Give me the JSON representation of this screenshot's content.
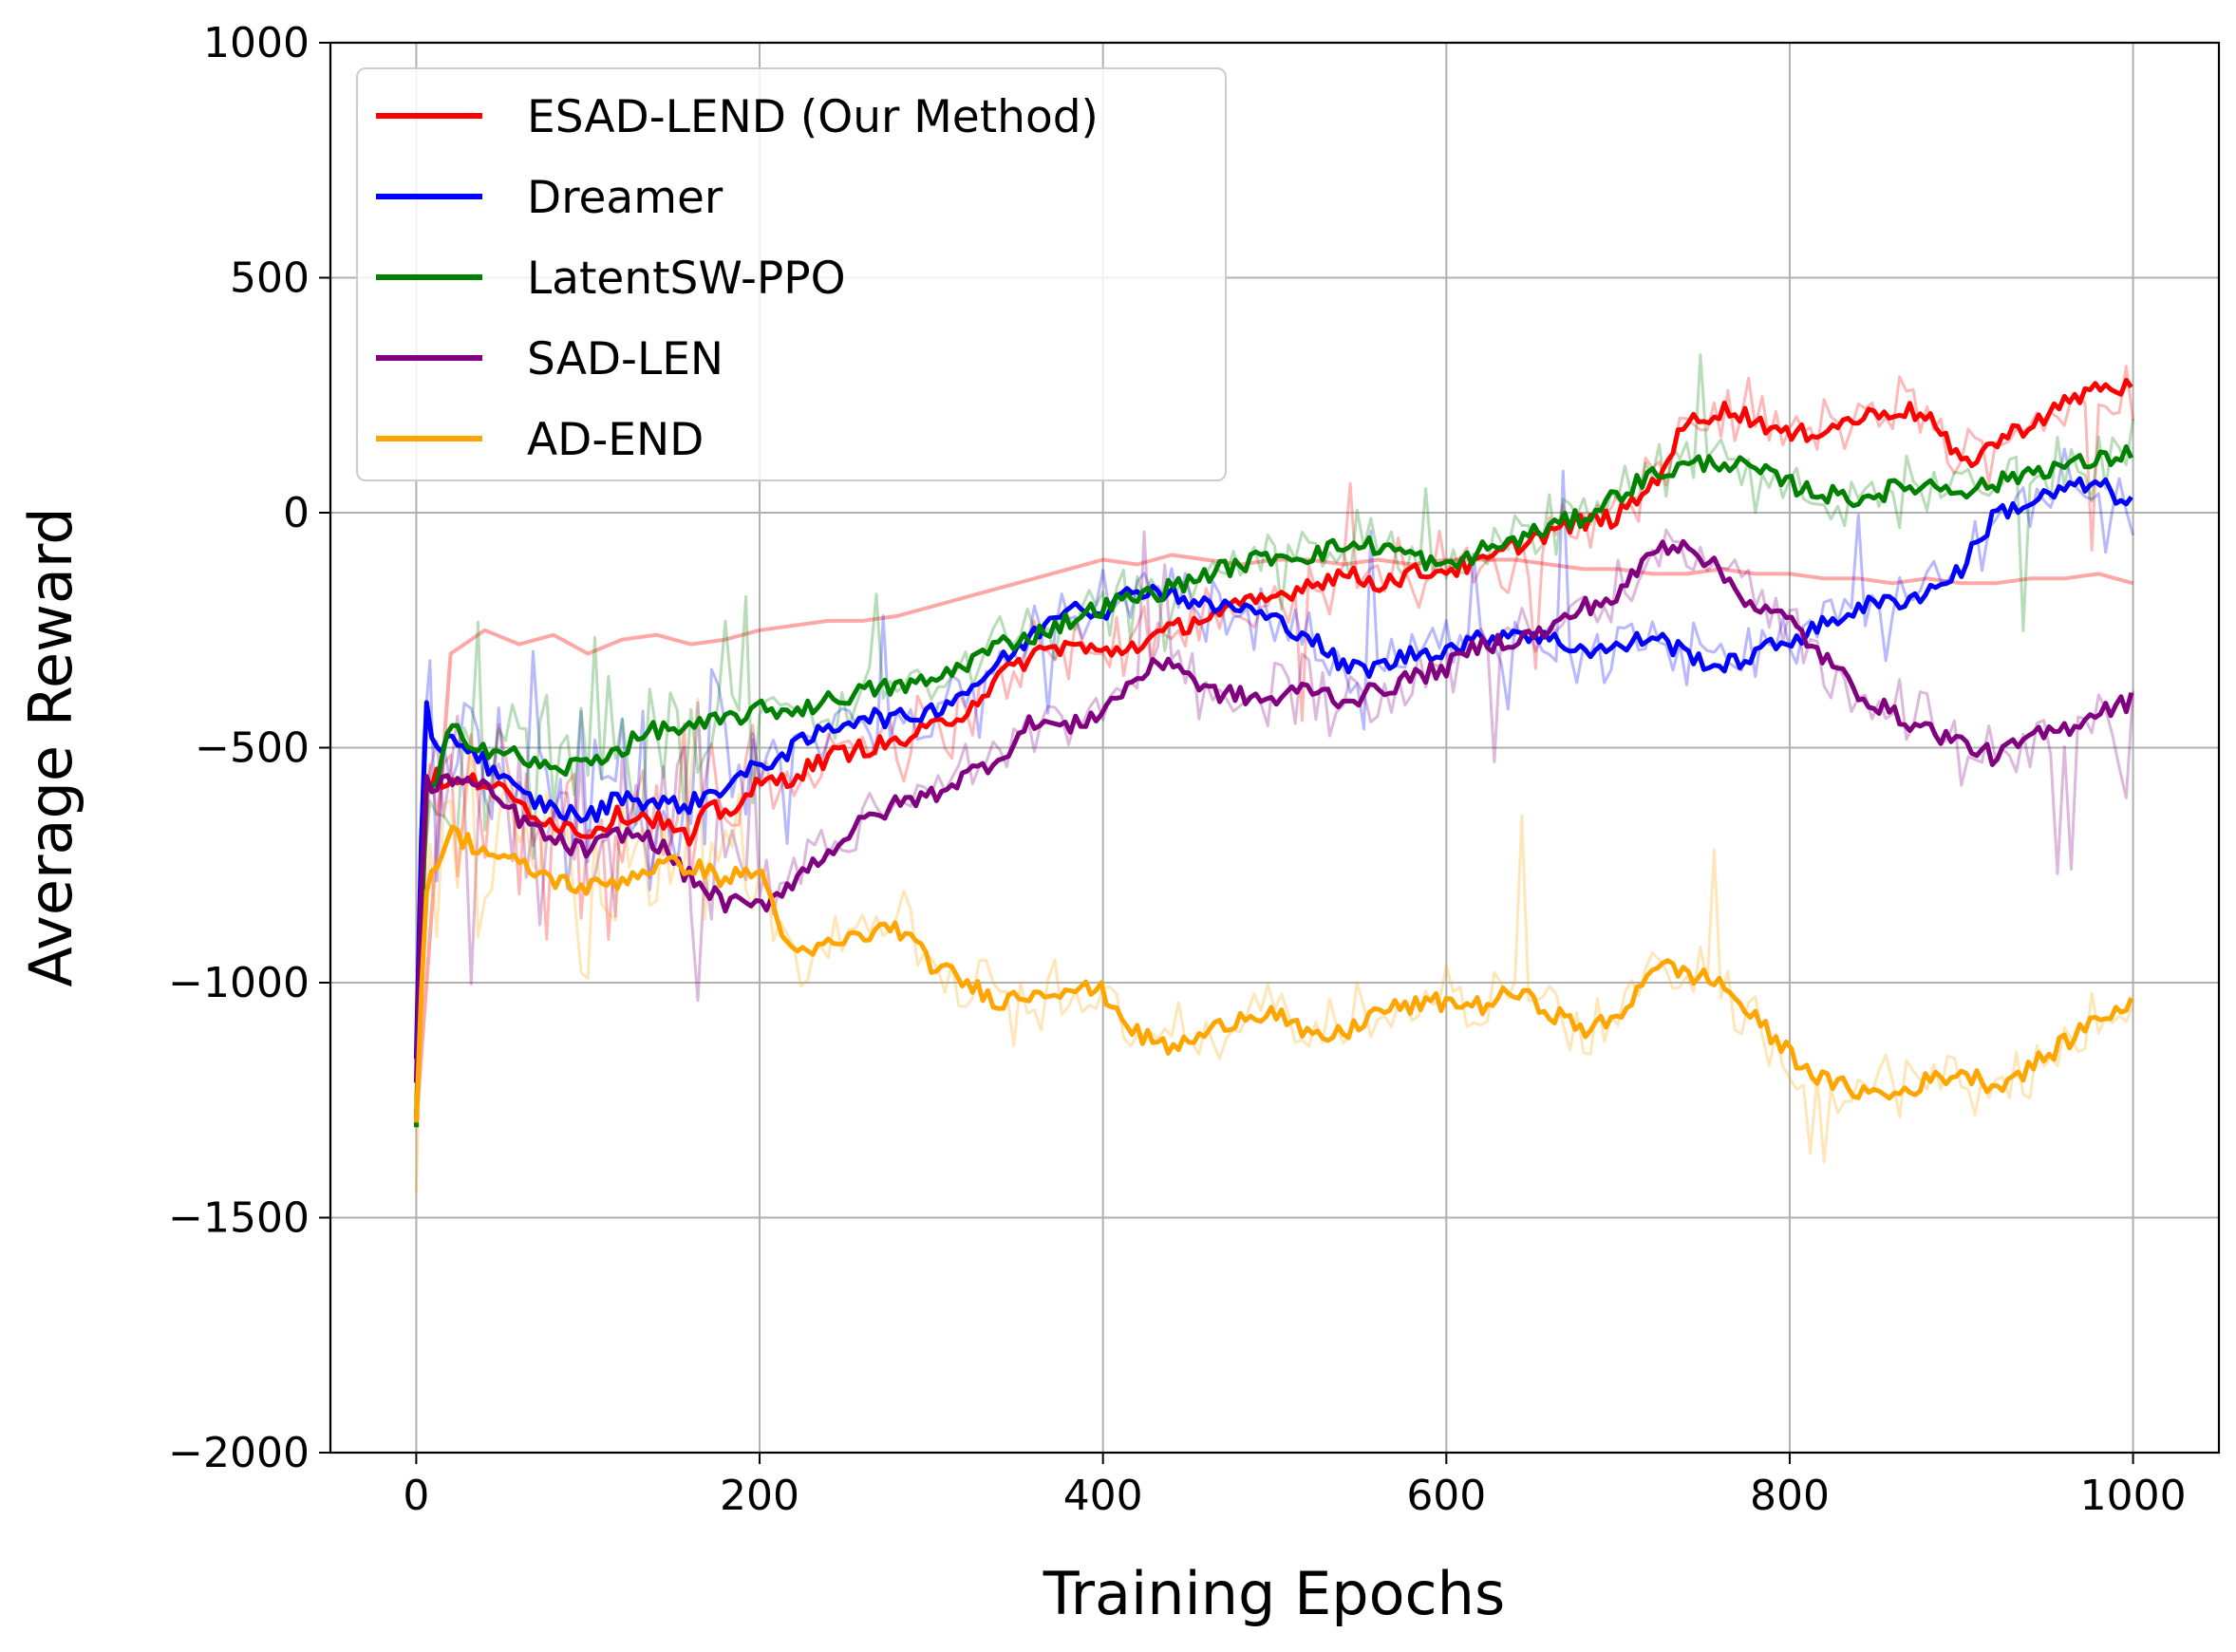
{
  "chart_data": {
    "type": "line",
    "title": "",
    "xlabel": "Training Epochs",
    "ylabel": "Average Reward",
    "xlim": [
      -50,
      1050
    ],
    "ylim": [
      -2000,
      1000
    ],
    "x_ticks": [
      0,
      200,
      400,
      600,
      800,
      1000
    ],
    "y_ticks": [
      -2000,
      -1500,
      -1000,
      -500,
      0,
      500,
      1000
    ],
    "x_tick_labels": [
      "0",
      "200",
      "400",
      "600",
      "800",
      "1000"
    ],
    "y_tick_labels": [
      "−2000",
      "−1500",
      "−1000",
      "−500",
      "0",
      "500",
      "1000"
    ],
    "grid": true,
    "legend_position": "top-left",
    "series": [
      {
        "name": "ESAD-LEND (Our Method)",
        "color": "#ff0000",
        "x": [
          0,
          5,
          10,
          20,
          40,
          60,
          80,
          100,
          120,
          140,
          160,
          170,
          180,
          200,
          220,
          240,
          260,
          280,
          300,
          320,
          340,
          360,
          380,
          400,
          420,
          440,
          460,
          480,
          500,
          520,
          540,
          560,
          580,
          600,
          620,
          640,
          660,
          680,
          700,
          720,
          740,
          760,
          780,
          800,
          820,
          840,
          860,
          880,
          900,
          920,
          940,
          960,
          980,
          1000
        ],
        "values": [
          -1300,
          -600,
          -560,
          -580,
          -570,
          -620,
          -660,
          -680,
          -640,
          -650,
          -700,
          -630,
          -640,
          -580,
          -560,
          -520,
          -500,
          -490,
          -460,
          -420,
          -350,
          -300,
          -280,
          -300,
          -280,
          -250,
          -220,
          -200,
          -180,
          -150,
          -130,
          -150,
          -130,
          -120,
          -110,
          -70,
          -40,
          -20,
          -10,
          60,
          190,
          220,
          200,
          160,
          180,
          200,
          220,
          210,
          100,
          150,
          190,
          230,
          270,
          265
        ]
      },
      {
        "name": "Dreamer",
        "color": "#0000ff",
        "x": [
          0,
          5,
          10,
          20,
          40,
          60,
          80,
          100,
          120,
          140,
          160,
          180,
          200,
          220,
          240,
          260,
          280,
          300,
          320,
          340,
          360,
          380,
          400,
          420,
          440,
          460,
          480,
          500,
          520,
          540,
          560,
          580,
          600,
          620,
          640,
          660,
          680,
          700,
          720,
          740,
          760,
          780,
          800,
          820,
          840,
          860,
          880,
          900,
          920,
          940,
          960,
          980,
          1000
        ],
        "values": [
          -1170,
          -400,
          -520,
          -470,
          -530,
          -600,
          -630,
          -650,
          -600,
          -620,
          -620,
          -580,
          -540,
          -500,
          -460,
          -430,
          -440,
          -420,
          -380,
          -320,
          -260,
          -190,
          -210,
          -160,
          -170,
          -200,
          -200,
          -230,
          -260,
          -330,
          -330,
          -300,
          -290,
          -270,
          -250,
          -270,
          -290,
          -290,
          -260,
          -300,
          -330,
          -300,
          -270,
          -240,
          -200,
          -190,
          -170,
          -120,
          0,
          20,
          50,
          60,
          15
        ]
      },
      {
        "name": "LatentSW-PPO",
        "color": "#008000",
        "x": [
          0,
          5,
          10,
          20,
          40,
          60,
          80,
          100,
          120,
          140,
          160,
          180,
          200,
          220,
          240,
          260,
          280,
          300,
          320,
          340,
          360,
          380,
          400,
          420,
          440,
          460,
          480,
          500,
          520,
          540,
          560,
          580,
          600,
          620,
          640,
          660,
          680,
          700,
          720,
          740,
          760,
          780,
          800,
          820,
          840,
          860,
          880,
          900,
          920,
          940,
          960,
          980,
          1000
        ],
        "values": [
          -1300,
          -580,
          -600,
          -460,
          -500,
          -520,
          -550,
          -530,
          -500,
          -460,
          -460,
          -440,
          -420,
          -420,
          -400,
          -380,
          -370,
          -360,
          -320,
          -280,
          -260,
          -230,
          -200,
          -180,
          -160,
          -130,
          -110,
          -90,
          -90,
          -70,
          -70,
          -90,
          -120,
          -80,
          -60,
          -30,
          -10,
          40,
          80,
          100,
          110,
          90,
          60,
          40,
          30,
          50,
          60,
          50,
          60,
          90,
          100,
          110,
          130
        ]
      },
      {
        "name": "SAD-LEN",
        "color": "#800080",
        "x": [
          0,
          5,
          10,
          20,
          40,
          60,
          80,
          100,
          120,
          140,
          160,
          180,
          200,
          220,
          240,
          260,
          280,
          300,
          320,
          340,
          360,
          380,
          400,
          420,
          440,
          460,
          480,
          500,
          520,
          540,
          560,
          580,
          600,
          620,
          640,
          660,
          680,
          700,
          720,
          740,
          760,
          780,
          800,
          820,
          840,
          860,
          880,
          900,
          920,
          940,
          960,
          980,
          1000
        ],
        "values": [
          -1200,
          -550,
          -600,
          -560,
          -590,
          -650,
          -700,
          -720,
          -680,
          -700,
          -780,
          -830,
          -840,
          -780,
          -720,
          -660,
          -620,
          -600,
          -560,
          -520,
          -440,
          -460,
          -420,
          -350,
          -310,
          -380,
          -390,
          -400,
          -370,
          -400,
          -380,
          -350,
          -330,
          -280,
          -270,
          -250,
          -200,
          -180,
          -80,
          -60,
          -130,
          -200,
          -230,
          -310,
          -380,
          -430,
          -460,
          -490,
          -520,
          -480,
          -460,
          -420,
          -400
        ]
      },
      {
        "name": "AD-END",
        "color": "#ffa500",
        "x": [
          0,
          5,
          10,
          20,
          40,
          60,
          80,
          100,
          120,
          140,
          160,
          180,
          200,
          220,
          240,
          260,
          280,
          300,
          320,
          340,
          360,
          380,
          400,
          420,
          440,
          460,
          480,
          500,
          520,
          540,
          560,
          580,
          600,
          620,
          640,
          660,
          680,
          700,
          720,
          740,
          760,
          780,
          800,
          820,
          840,
          860,
          880,
          900,
          920,
          940,
          960,
          980,
          1000
        ],
        "values": [
          -1300,
          -800,
          -760,
          -680,
          -720,
          -750,
          -780,
          -800,
          -780,
          -750,
          -750,
          -780,
          -760,
          -950,
          -920,
          -900,
          -880,
          -960,
          -1000,
          -1040,
          -1020,
          -1010,
          -1020,
          -1110,
          -1140,
          -1110,
          -1070,
          -1060,
          -1120,
          -1110,
          -1060,
          -1050,
          -1040,
          -1050,
          -1020,
          -1060,
          -1100,
          -1080,
          -960,
          -980,
          -1000,
          -1080,
          -1150,
          -1210,
          -1230,
          -1240,
          -1210,
          -1190,
          -1220,
          -1180,
          -1130,
          -1070,
          -1050
        ]
      }
    ],
    "background_traces": [
      {
        "series": "ESAD-LEND (Our Method)",
        "color": "#ff0000",
        "x": [
          0,
          20,
          40,
          60,
          80,
          100,
          120,
          140,
          160,
          180,
          200,
          220,
          240,
          260,
          280,
          300,
          320,
          340,
          360,
          380,
          400,
          420,
          440,
          460,
          480,
          500,
          520,
          540,
          560,
          580,
          600,
          620,
          640,
          660,
          680,
          700,
          720,
          740,
          760,
          780,
          800,
          820,
          840,
          860,
          880,
          900,
          920,
          940,
          960,
          980,
          1000
        ],
        "values": [
          -1300,
          -300,
          -250,
          -280,
          -260,
          -300,
          -270,
          -260,
          -280,
          -270,
          -250,
          -240,
          -230,
          -230,
          -220,
          -200,
          -180,
          -160,
          -140,
          -120,
          -100,
          -110,
          -90,
          -100,
          -110,
          -100,
          -100,
          -110,
          -100,
          -110,
          -100,
          -100,
          -100,
          -110,
          -120,
          -120,
          -130,
          -130,
          -120,
          -130,
          -130,
          -140,
          -140,
          -150,
          -140,
          -150,
          -150,
          -140,
          -140,
          -130,
          -150
        ]
      }
    ]
  }
}
